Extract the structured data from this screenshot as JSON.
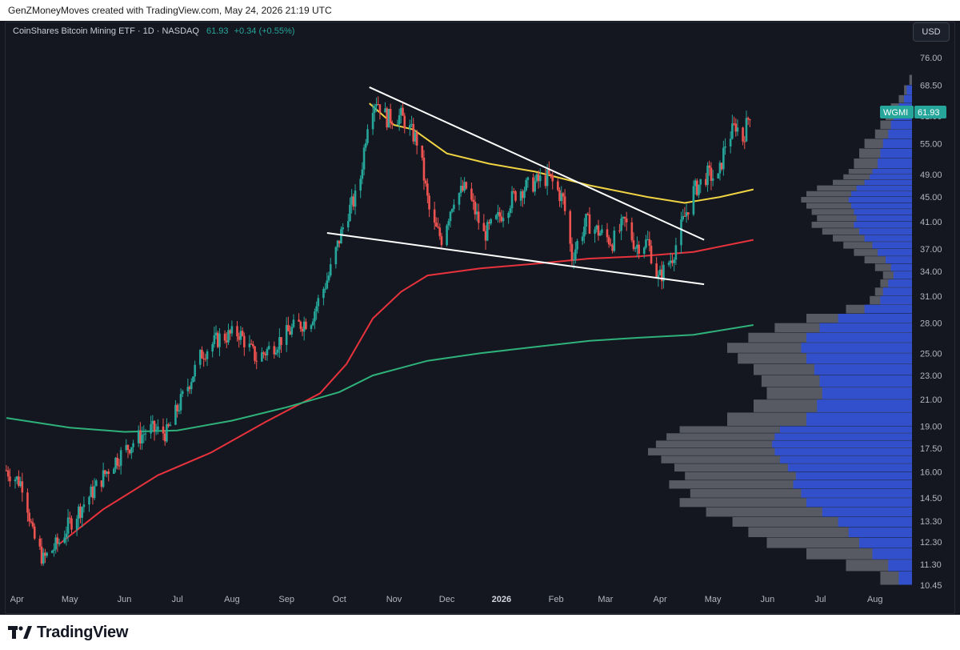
{
  "header": {
    "credit": "GenZMoneyMoves created with TradingView.com, May 24, 2026 21:19 UTC"
  },
  "symbol_info": {
    "name": "CoinShares Bitcoin Mining ETF · 1D · NASDAQ",
    "price": "61.93",
    "change": "+0.34 (+0.55%)"
  },
  "currency_button": "USD",
  "footer": {
    "brand": "TradingView"
  },
  "colors": {
    "up": "#26a69a",
    "down": "#ef5350",
    "ma_short": "#f0d343",
    "ma_mid": "#e8323c",
    "ma_long": "#2fb27a",
    "trendline": "#ffffff",
    "volume_up": "#2f4fd6",
    "volume_total": "#6e717a"
  },
  "chart_data": {
    "type": "candlestick",
    "ticker_label": "WGMI",
    "last_price": 61.93,
    "y_scale": "log",
    "y_range": [
      10.2,
      82
    ],
    "y_ticks": [
      76.0,
      68.5,
      61.0,
      55.0,
      49.0,
      45.0,
      41.0,
      37.0,
      34.0,
      31.0,
      28.0,
      25.0,
      23.0,
      21.0,
      19.0,
      17.5,
      16.0,
      14.5,
      13.3,
      12.3,
      11.3,
      10.45
    ],
    "y_tick_labels": [
      "76.00",
      "68.50",
      "61.00",
      "55.00",
      "49.00",
      "45.00",
      "41.00",
      "37.00",
      "34.00",
      "31.00",
      "28.00",
      "25.00",
      "23.00",
      "21.00",
      "19.00",
      "17.50",
      "16.00",
      "14.50",
      "13.30",
      "12.30",
      "11.30",
      "10.45"
    ],
    "x_range": [
      "2025-03-26",
      "2026-08-22"
    ],
    "x_ticks": [
      {
        "label": "Apr",
        "date": "2025-04-01"
      },
      {
        "label": "May",
        "date": "2025-05-01"
      },
      {
        "label": "Jun",
        "date": "2025-06-01"
      },
      {
        "label": "Jul",
        "date": "2025-07-01"
      },
      {
        "label": "Aug",
        "date": "2025-08-01"
      },
      {
        "label": "Sep",
        "date": "2025-09-01"
      },
      {
        "label": "Oct",
        "date": "2025-10-01"
      },
      {
        "label": "Nov",
        "date": "2025-11-01"
      },
      {
        "label": "Dec",
        "date": "2025-12-01"
      },
      {
        "label": "2026",
        "date": "2026-01-01",
        "bold": true
      },
      {
        "label": "Feb",
        "date": "2026-02-01"
      },
      {
        "label": "Mar",
        "date": "2026-03-01"
      },
      {
        "label": "Apr",
        "date": "2026-04-01"
      },
      {
        "label": "May",
        "date": "2026-05-01"
      },
      {
        "label": "Jun",
        "date": "2026-06-01"
      },
      {
        "label": "Jul",
        "date": "2026-07-01"
      },
      {
        "label": "Aug",
        "date": "2026-08-01"
      }
    ],
    "price_path": [
      [
        "2025-03-26",
        16.1
      ],
      [
        "2025-04-05",
        15.2
      ],
      [
        "2025-04-10",
        12.6
      ],
      [
        "2025-04-16",
        11.5
      ],
      [
        "2025-04-25",
        12.3
      ],
      [
        "2025-05-01",
        13.2
      ],
      [
        "2025-05-15",
        15.0
      ],
      [
        "2025-05-25",
        16.5
      ],
      [
        "2025-06-05",
        17.8
      ],
      [
        "2025-06-15",
        18.8
      ],
      [
        "2025-06-25",
        18.5
      ],
      [
        "2025-07-05",
        21.5
      ],
      [
        "2025-07-15",
        25.0
      ],
      [
        "2025-07-25",
        26.5
      ],
      [
        "2025-08-05",
        27.0
      ],
      [
        "2025-08-15",
        24.5
      ],
      [
        "2025-08-25",
        25.8
      ],
      [
        "2025-09-05",
        27.5
      ],
      [
        "2025-09-15",
        28.5
      ],
      [
        "2025-09-25",
        33.5
      ],
      [
        "2025-10-05",
        42.0
      ],
      [
        "2025-10-12",
        46.0
      ],
      [
        "2025-10-18",
        63.0
      ],
      [
        "2025-10-22",
        65.0
      ],
      [
        "2025-10-28",
        60.5
      ],
      [
        "2025-11-05",
        61.0
      ],
      [
        "2025-11-15",
        55.0
      ],
      [
        "2025-11-22",
        41.0
      ],
      [
        "2025-11-28",
        38.5
      ],
      [
        "2025-12-05",
        45.0
      ],
      [
        "2025-12-12",
        46.5
      ],
      [
        "2025-12-22",
        39.0
      ],
      [
        "2025-12-30",
        41.5
      ],
      [
        "2026-01-10",
        46.0
      ],
      [
        "2026-01-20",
        47.5
      ],
      [
        "2026-01-28",
        48.5
      ],
      [
        "2026-02-05",
        44.5
      ],
      [
        "2026-02-10",
        36.0
      ],
      [
        "2026-02-18",
        41.0
      ],
      [
        "2026-02-25",
        39.5
      ],
      [
        "2026-03-05",
        38.0
      ],
      [
        "2026-03-12",
        41.0
      ],
      [
        "2026-03-18",
        37.5
      ],
      [
        "2026-03-25",
        38.0
      ],
      [
        "2026-03-31",
        33.0
      ],
      [
        "2026-04-08",
        36.0
      ],
      [
        "2026-04-14",
        41.0
      ],
      [
        "2026-04-20",
        46.0
      ],
      [
        "2026-04-28",
        49.0
      ],
      [
        "2026-05-04",
        48.0
      ],
      [
        "2026-05-08",
        55.0
      ],
      [
        "2026-05-14",
        59.0
      ],
      [
        "2026-05-18",
        56.0
      ],
      [
        "2026-05-22",
        61.93
      ]
    ],
    "moving_averages": [
      {
        "color": "ma_short",
        "points": [
          [
            "2025-10-18",
            64.0
          ],
          [
            "2025-11-01",
            59.0
          ],
          [
            "2025-11-12",
            58.0
          ],
          [
            "2025-12-01",
            53.0
          ],
          [
            "2025-12-25",
            51.0
          ],
          [
            "2026-01-20",
            49.5
          ],
          [
            "2026-02-20",
            47.0
          ],
          [
            "2026-03-25",
            45.0
          ],
          [
            "2026-04-15",
            44.0
          ],
          [
            "2026-05-05",
            45.0
          ],
          [
            "2026-05-24",
            46.3
          ]
        ]
      },
      {
        "color": "ma_mid",
        "points": [
          [
            "2025-04-25",
            12.2
          ],
          [
            "2025-05-20",
            13.9
          ],
          [
            "2025-06-20",
            15.8
          ],
          [
            "2025-07-20",
            17.2
          ],
          [
            "2025-08-20",
            19.3
          ],
          [
            "2025-09-20",
            21.5
          ],
          [
            "2025-10-05",
            24.0
          ],
          [
            "2025-10-20",
            28.5
          ],
          [
            "2025-11-05",
            31.5
          ],
          [
            "2025-11-20",
            33.5
          ],
          [
            "2025-12-20",
            34.4
          ],
          [
            "2026-01-20",
            35.0
          ],
          [
            "2026-02-20",
            35.7
          ],
          [
            "2026-03-20",
            36.0
          ],
          [
            "2026-04-20",
            36.6
          ],
          [
            "2026-05-24",
            38.3
          ]
        ]
      },
      {
        "color": "ma_long",
        "points": [
          [
            "2025-03-26",
            19.6
          ],
          [
            "2025-05-01",
            18.9
          ],
          [
            "2025-06-01",
            18.6
          ],
          [
            "2025-07-01",
            18.7
          ],
          [
            "2025-08-01",
            19.4
          ],
          [
            "2025-09-01",
            20.4
          ],
          [
            "2025-10-01",
            21.6
          ],
          [
            "2025-10-20",
            23.0
          ],
          [
            "2025-11-20",
            24.3
          ],
          [
            "2025-12-20",
            25.0
          ],
          [
            "2026-01-20",
            25.6
          ],
          [
            "2026-02-20",
            26.2
          ],
          [
            "2026-03-20",
            26.5
          ],
          [
            "2026-04-20",
            26.8
          ],
          [
            "2026-05-24",
            27.8
          ]
        ]
      }
    ],
    "trendlines": [
      {
        "from": [
          "2025-10-18",
          68.0
        ],
        "to": [
          "2026-04-26",
          38.3
        ]
      },
      {
        "from": [
          "2025-09-24",
          39.3
        ],
        "to": [
          "2026-04-26",
          32.4
        ]
      }
    ],
    "volume_profile": {
      "rows": [
        [
          10.45,
          0.12,
          0.05
        ],
        [
          11.0,
          0.25,
          0.09
        ],
        [
          11.5,
          0.4,
          0.15
        ],
        [
          12.0,
          0.55,
          0.2
        ],
        [
          12.5,
          0.62,
          0.24
        ],
        [
          13.0,
          0.68,
          0.28
        ],
        [
          13.5,
          0.78,
          0.34
        ],
        [
          14.0,
          0.88,
          0.4
        ],
        [
          14.5,
          0.84,
          0.42
        ],
        [
          15.0,
          0.92,
          0.45
        ],
        [
          15.5,
          0.86,
          0.44
        ],
        [
          16.0,
          0.9,
          0.47
        ],
        [
          16.5,
          0.95,
          0.5
        ],
        [
          17.0,
          1.0,
          0.52
        ],
        [
          17.5,
          0.97,
          0.53
        ],
        [
          18.0,
          0.93,
          0.52
        ],
        [
          18.5,
          0.88,
          0.5
        ],
        [
          19.0,
          0.7,
          0.4
        ],
        [
          20.0,
          0.6,
          0.36
        ],
        [
          21.0,
          0.55,
          0.34
        ],
        [
          22.0,
          0.57,
          0.35
        ],
        [
          23.0,
          0.6,
          0.37
        ],
        [
          24.0,
          0.66,
          0.4
        ],
        [
          25.0,
          0.7,
          0.42
        ],
        [
          26.0,
          0.62,
          0.4
        ],
        [
          27.0,
          0.52,
          0.35
        ],
        [
          28.0,
          0.4,
          0.28
        ],
        [
          29.0,
          0.25,
          0.18
        ],
        [
          30.0,
          0.16,
          0.12
        ],
        [
          31.0,
          0.14,
          0.11
        ],
        [
          32.0,
          0.12,
          0.09
        ],
        [
          33.0,
          0.11,
          0.07
        ],
        [
          34.0,
          0.14,
          0.08
        ],
        [
          35.0,
          0.18,
          0.1
        ],
        [
          36.0,
          0.22,
          0.13
        ],
        [
          37.0,
          0.26,
          0.15
        ],
        [
          38.0,
          0.3,
          0.18
        ],
        [
          39.0,
          0.34,
          0.2
        ],
        [
          40.0,
          0.38,
          0.22
        ],
        [
          41.0,
          0.36,
          0.21
        ],
        [
          42.0,
          0.38,
          0.22
        ],
        [
          43.0,
          0.4,
          0.23
        ],
        [
          44.0,
          0.42,
          0.24
        ],
        [
          45.0,
          0.4,
          0.23
        ],
        [
          46.0,
          0.36,
          0.21
        ],
        [
          47.0,
          0.3,
          0.18
        ],
        [
          48.0,
          0.26,
          0.16
        ],
        [
          49.0,
          0.24,
          0.15
        ],
        [
          50.0,
          0.22,
          0.13
        ],
        [
          52.0,
          0.2,
          0.12
        ],
        [
          54.0,
          0.18,
          0.11
        ],
        [
          56.0,
          0.14,
          0.09
        ],
        [
          58.0,
          0.12,
          0.08
        ],
        [
          60.0,
          0.1,
          0.07
        ],
        [
          62.0,
          0.08,
          0.05
        ],
        [
          64.0,
          0.05,
          0.03
        ],
        [
          66.0,
          0.03,
          0.02
        ],
        [
          68.5,
          0.01,
          0.0
        ]
      ]
    }
  }
}
